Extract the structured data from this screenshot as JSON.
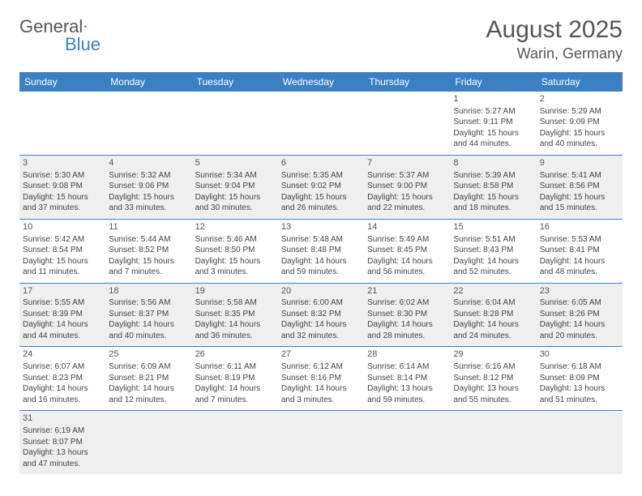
{
  "logo": {
    "text1": "General",
    "text2": "Blue"
  },
  "title": "August 2025",
  "location": "Warin, Germany",
  "colors": {
    "header_bg": "#3b7fc4",
    "header_text": "#ffffff",
    "row_alt_bg": "#f0f0f0",
    "text": "#444444",
    "title_text": "#555555"
  },
  "day_headers": [
    "Sunday",
    "Monday",
    "Tuesday",
    "Wednesday",
    "Thursday",
    "Friday",
    "Saturday"
  ],
  "weeks": [
    [
      null,
      null,
      null,
      null,
      null,
      {
        "n": "1",
        "sr": "Sunrise: 5:27 AM",
        "ss": "Sunset: 9:11 PM",
        "dl": "Daylight: 15 hours and 44 minutes."
      },
      {
        "n": "2",
        "sr": "Sunrise: 5:29 AM",
        "ss": "Sunset: 9:09 PM",
        "dl": "Daylight: 15 hours and 40 minutes."
      }
    ],
    [
      {
        "n": "3",
        "sr": "Sunrise: 5:30 AM",
        "ss": "Sunset: 9:08 PM",
        "dl": "Daylight: 15 hours and 37 minutes."
      },
      {
        "n": "4",
        "sr": "Sunrise: 5:32 AM",
        "ss": "Sunset: 9:06 PM",
        "dl": "Daylight: 15 hours and 33 minutes."
      },
      {
        "n": "5",
        "sr": "Sunrise: 5:34 AM",
        "ss": "Sunset: 9:04 PM",
        "dl": "Daylight: 15 hours and 30 minutes."
      },
      {
        "n": "6",
        "sr": "Sunrise: 5:35 AM",
        "ss": "Sunset: 9:02 PM",
        "dl": "Daylight: 15 hours and 26 minutes."
      },
      {
        "n": "7",
        "sr": "Sunrise: 5:37 AM",
        "ss": "Sunset: 9:00 PM",
        "dl": "Daylight: 15 hours and 22 minutes."
      },
      {
        "n": "8",
        "sr": "Sunrise: 5:39 AM",
        "ss": "Sunset: 8:58 PM",
        "dl": "Daylight: 15 hours and 18 minutes."
      },
      {
        "n": "9",
        "sr": "Sunrise: 5:41 AM",
        "ss": "Sunset: 8:56 PM",
        "dl": "Daylight: 15 hours and 15 minutes."
      }
    ],
    [
      {
        "n": "10",
        "sr": "Sunrise: 5:42 AM",
        "ss": "Sunset: 8:54 PM",
        "dl": "Daylight: 15 hours and 11 minutes."
      },
      {
        "n": "11",
        "sr": "Sunrise: 5:44 AM",
        "ss": "Sunset: 8:52 PM",
        "dl": "Daylight: 15 hours and 7 minutes."
      },
      {
        "n": "12",
        "sr": "Sunrise: 5:46 AM",
        "ss": "Sunset: 8:50 PM",
        "dl": "Daylight: 15 hours and 3 minutes."
      },
      {
        "n": "13",
        "sr": "Sunrise: 5:48 AM",
        "ss": "Sunset: 8:48 PM",
        "dl": "Daylight: 14 hours and 59 minutes."
      },
      {
        "n": "14",
        "sr": "Sunrise: 5:49 AM",
        "ss": "Sunset: 8:45 PM",
        "dl": "Daylight: 14 hours and 56 minutes."
      },
      {
        "n": "15",
        "sr": "Sunrise: 5:51 AM",
        "ss": "Sunset: 8:43 PM",
        "dl": "Daylight: 14 hours and 52 minutes."
      },
      {
        "n": "16",
        "sr": "Sunrise: 5:53 AM",
        "ss": "Sunset: 8:41 PM",
        "dl": "Daylight: 14 hours and 48 minutes."
      }
    ],
    [
      {
        "n": "17",
        "sr": "Sunrise: 5:55 AM",
        "ss": "Sunset: 8:39 PM",
        "dl": "Daylight: 14 hours and 44 minutes."
      },
      {
        "n": "18",
        "sr": "Sunrise: 5:56 AM",
        "ss": "Sunset: 8:37 PM",
        "dl": "Daylight: 14 hours and 40 minutes."
      },
      {
        "n": "19",
        "sr": "Sunrise: 5:58 AM",
        "ss": "Sunset: 8:35 PM",
        "dl": "Daylight: 14 hours and 36 minutes."
      },
      {
        "n": "20",
        "sr": "Sunrise: 6:00 AM",
        "ss": "Sunset: 8:32 PM",
        "dl": "Daylight: 14 hours and 32 minutes."
      },
      {
        "n": "21",
        "sr": "Sunrise: 6:02 AM",
        "ss": "Sunset: 8:30 PM",
        "dl": "Daylight: 14 hours and 28 minutes."
      },
      {
        "n": "22",
        "sr": "Sunrise: 6:04 AM",
        "ss": "Sunset: 8:28 PM",
        "dl": "Daylight: 14 hours and 24 minutes."
      },
      {
        "n": "23",
        "sr": "Sunrise: 6:05 AM",
        "ss": "Sunset: 8:26 PM",
        "dl": "Daylight: 14 hours and 20 minutes."
      }
    ],
    [
      {
        "n": "24",
        "sr": "Sunrise: 6:07 AM",
        "ss": "Sunset: 8:23 PM",
        "dl": "Daylight: 14 hours and 16 minutes."
      },
      {
        "n": "25",
        "sr": "Sunrise: 6:09 AM",
        "ss": "Sunset: 8:21 PM",
        "dl": "Daylight: 14 hours and 12 minutes."
      },
      {
        "n": "26",
        "sr": "Sunrise: 6:11 AM",
        "ss": "Sunset: 8:19 PM",
        "dl": "Daylight: 14 hours and 7 minutes."
      },
      {
        "n": "27",
        "sr": "Sunrise: 6:12 AM",
        "ss": "Sunset: 8:16 PM",
        "dl": "Daylight: 14 hours and 3 minutes."
      },
      {
        "n": "28",
        "sr": "Sunrise: 6:14 AM",
        "ss": "Sunset: 8:14 PM",
        "dl": "Daylight: 13 hours and 59 minutes."
      },
      {
        "n": "29",
        "sr": "Sunrise: 6:16 AM",
        "ss": "Sunset: 8:12 PM",
        "dl": "Daylight: 13 hours and 55 minutes."
      },
      {
        "n": "30",
        "sr": "Sunrise: 6:18 AM",
        "ss": "Sunset: 8:09 PM",
        "dl": "Daylight: 13 hours and 51 minutes."
      }
    ],
    [
      {
        "n": "31",
        "sr": "Sunrise: 6:19 AM",
        "ss": "Sunset: 8:07 PM",
        "dl": "Daylight: 13 hours and 47 minutes."
      },
      null,
      null,
      null,
      null,
      null,
      null
    ]
  ]
}
